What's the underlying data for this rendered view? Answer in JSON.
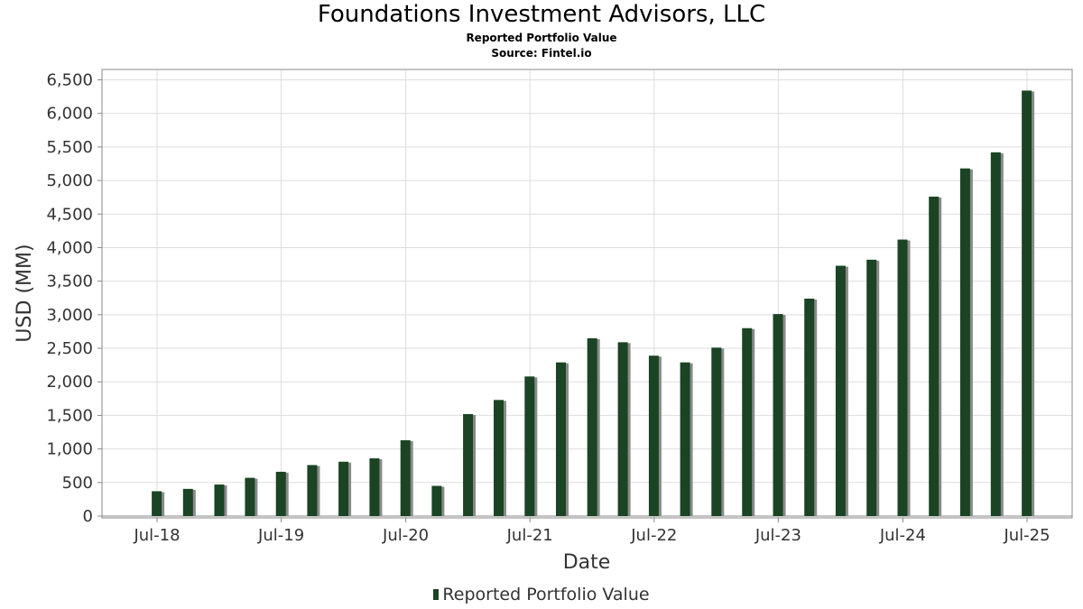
{
  "title": "Foundations Investment Advisors, LLC",
  "subtitle": "Reported Portfolio Value",
  "source": "Source: Fintel.io",
  "legend_label": "Reported Portfolio Value",
  "colors": {
    "bar": "#1a4423",
    "shadow": "#8a8a8a",
    "grid": "#dddddd",
    "frame": "#888888"
  },
  "chart_data": {
    "type": "bar",
    "title": "Foundations Investment Advisors, LLC",
    "subtitle": "Reported Portfolio Value",
    "xlabel": "Date",
    "ylabel": "USD (MM)",
    "ylim": [
      0,
      6600
    ],
    "yticks": [
      "0",
      "500",
      "1,000",
      "1,500",
      "2,000",
      "2,500",
      "3,000",
      "3,500",
      "4,000",
      "4,500",
      "5,000",
      "5,500",
      "6,000",
      "6,500"
    ],
    "ytick_values": [
      0,
      500,
      1000,
      1500,
      2000,
      2500,
      3000,
      3500,
      4000,
      4500,
      5000,
      5500,
      6000,
      6500
    ],
    "xticks": [
      "Jul-18",
      "Jul-19",
      "Jul-20",
      "Jul-21",
      "Jul-22",
      "Jul-23",
      "Jul-24",
      "Jul-25"
    ],
    "xtick_dates": [
      "2018-07-01",
      "2019-07-01",
      "2020-07-01",
      "2021-07-01",
      "2022-07-01",
      "2023-07-01",
      "2024-07-01",
      "2025-07-01"
    ],
    "grid": true,
    "legend": "bottom-center",
    "series": [
      {
        "name": "Reported Portfolio Value",
        "dates": [
          "2018-06-30",
          "2018-09-30",
          "2018-12-31",
          "2019-03-31",
          "2019-06-30",
          "2019-09-30",
          "2019-12-31",
          "2020-03-31",
          "2020-06-30",
          "2020-09-30",
          "2020-12-31",
          "2021-03-31",
          "2021-06-30",
          "2021-09-30",
          "2021-12-31",
          "2022-03-31",
          "2022-06-30",
          "2022-09-30",
          "2022-12-31",
          "2023-03-31",
          "2023-06-30",
          "2023-09-30",
          "2023-12-31",
          "2024-03-31",
          "2024-06-30",
          "2024-09-30",
          "2024-12-31",
          "2025-03-31",
          "2025-06-30"
        ],
        "values": [
          370,
          405,
          470,
          570,
          660,
          760,
          810,
          860,
          1130,
          450,
          1520,
          1730,
          2080,
          2290,
          2650,
          2590,
          2390,
          2290,
          2510,
          2800,
          3010,
          3240,
          3730,
          3820,
          4120,
          4760,
          5180,
          5420,
          6340
        ]
      }
    ]
  }
}
